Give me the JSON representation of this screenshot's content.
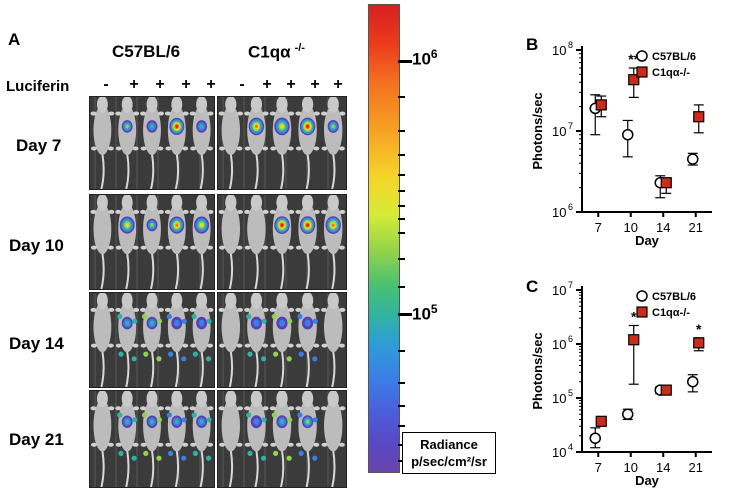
{
  "panel_a": {
    "letter": "A",
    "strains": [
      "C57BL/6",
      "C1qα",
      "-/-"
    ],
    "luciferin_label": "Luciferin",
    "luciferin_signs": [
      "-",
      "+",
      "+",
      "+",
      "+"
    ],
    "days": [
      "Day 7",
      "Day 10",
      "Day 14",
      "Day 21"
    ]
  },
  "colorbar": {
    "top_label": "10",
    "top_exp": "6",
    "mid_label": "10",
    "mid_exp": "5",
    "radiance_title": "Radiance",
    "radiance_units": "p/sec/cm²/sr",
    "gradient_stops": [
      "#d62020",
      "#f4731f",
      "#f5d52a",
      "#8fd34b",
      "#2fb2a6",
      "#3a7fe6",
      "#6a43ad"
    ]
  },
  "chart_data": [
    {
      "panel": "B",
      "type": "scatter",
      "scale": "log",
      "ylabel": "Photons/sec",
      "xlabel": "Day",
      "categories": [
        "7",
        "10",
        "14",
        "21"
      ],
      "ylim_exp": [
        6,
        8
      ],
      "ytick_labels": [
        {
          "base": "10",
          "exp": "6"
        },
        {
          "base": "10",
          "exp": "7"
        },
        {
          "base": "10",
          "exp": "8"
        }
      ],
      "legend_position": "top-right",
      "series": [
        {
          "name": "C57BL/6",
          "marker": "open-circle",
          "values": [
            19000000,
            9000000,
            2300000,
            4500000
          ],
          "err_low": [
            9000000,
            4800000,
            1500000,
            3800000
          ],
          "err_high": [
            28000000,
            13500000,
            2800000,
            5300000
          ]
        },
        {
          "name": "C1qα-/-",
          "marker": "red-square",
          "values": [
            21000000,
            43000000,
            2300000,
            15000000
          ],
          "err_low": [
            15000000,
            26000000,
            1700000,
            9500000
          ],
          "err_high": [
            27000000,
            60000000,
            2600000,
            21000000
          ]
        }
      ],
      "annotations": [
        {
          "category": "10",
          "text": "**"
        }
      ]
    },
    {
      "panel": "C",
      "type": "scatter",
      "scale": "log",
      "ylabel": "Photons/sec",
      "xlabel": "Day",
      "categories": [
        "7",
        "10",
        "14",
        "21"
      ],
      "ylim_exp": [
        4,
        7
      ],
      "ytick_labels": [
        {
          "base": "10",
          "exp": "4"
        },
        {
          "base": "10",
          "exp": "5"
        },
        {
          "base": "10",
          "exp": "6"
        },
        {
          "base": "10",
          "exp": "7"
        }
      ],
      "legend_position": "top-right",
      "series": [
        {
          "name": "C57BL/6",
          "marker": "open-circle",
          "values": [
            18000,
            50000,
            140000,
            200000
          ],
          "err_low": [
            12000,
            40000,
            120000,
            130000
          ],
          "err_high": [
            28000,
            62000,
            160000,
            270000
          ]
        },
        {
          "name": "C1qα-/-",
          "marker": "red-square",
          "values": [
            37000,
            1200000,
            140000,
            1050000
          ],
          "err_low": [
            33000,
            180000,
            125000,
            750000
          ],
          "err_high": [
            40000,
            2200000,
            155000,
            1300000
          ]
        }
      ],
      "annotations": [
        {
          "category": "10",
          "text": "*"
        },
        {
          "category": "21",
          "text": "*"
        }
      ]
    }
  ]
}
